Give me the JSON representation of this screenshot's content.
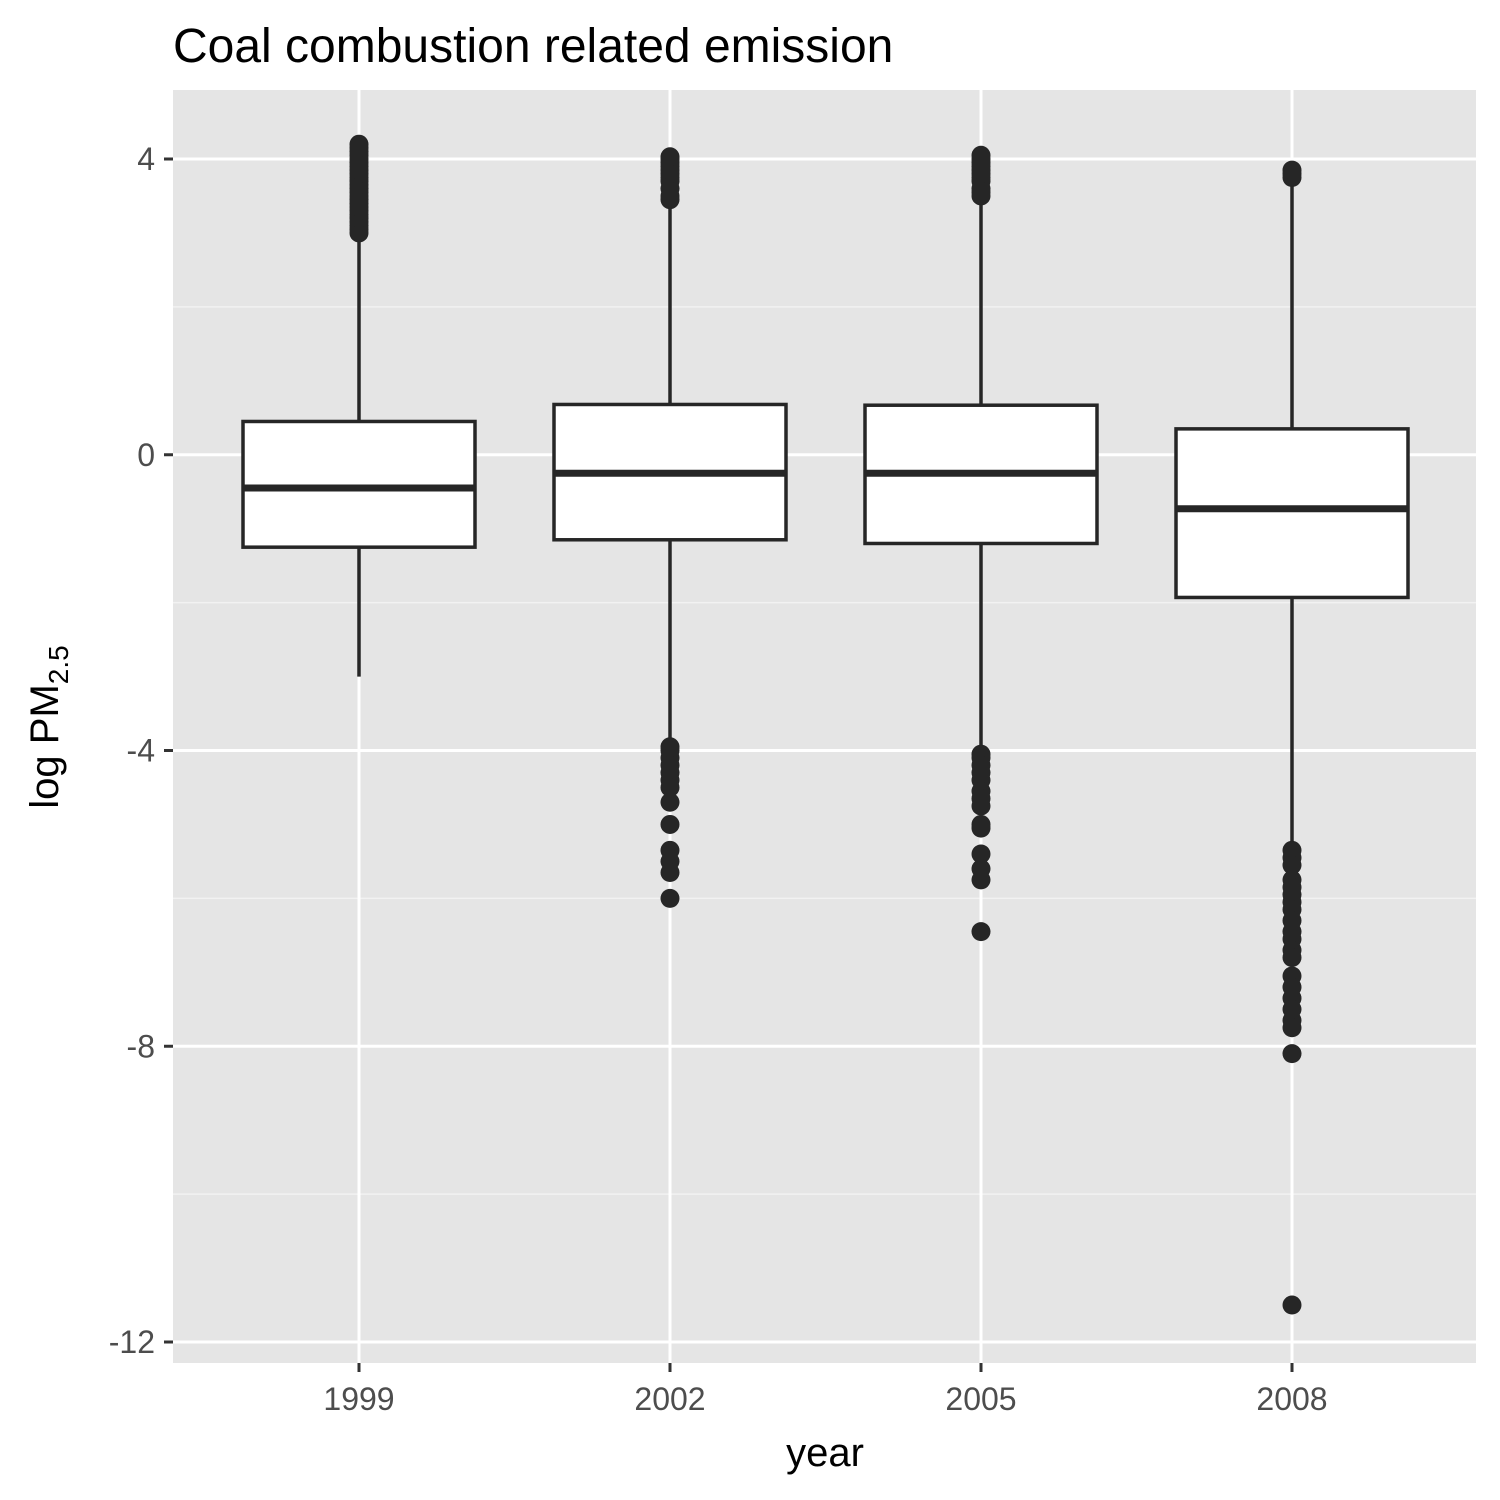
{
  "chart_data": {
    "type": "boxplot",
    "title": "Coal combustion related emission",
    "xlabel": "year",
    "ylabel_main": "log PM",
    "ylabel_sub": "2.5",
    "categories": [
      "1999",
      "2002",
      "2005",
      "2008"
    ],
    "ylim": [
      -12.3,
      5.0
    ],
    "yticks": [
      4,
      0,
      -4,
      -8,
      -12
    ],
    "ytick_labels": [
      "4",
      "0",
      "-4",
      "-8",
      "-12"
    ],
    "grid": true,
    "boxes": [
      {
        "category": "1999",
        "whisker_low": -3.0,
        "q1": -1.25,
        "median": -0.45,
        "q3": 0.45,
        "whisker_high": 3.0,
        "outliers": [
          3.0,
          3.05,
          3.1,
          3.15,
          3.2,
          3.25,
          3.3,
          3.35,
          3.4,
          3.45,
          3.5,
          3.55,
          3.6,
          3.65,
          3.7,
          3.75,
          3.8,
          3.85,
          3.9,
          3.95,
          4.0,
          4.05,
          4.1,
          4.15,
          4.2
        ]
      },
      {
        "category": "2002",
        "whisker_low": -3.95,
        "q1": -1.15,
        "median": -0.25,
        "q3": 0.68,
        "whisker_high": 3.45,
        "outliers": [
          3.45,
          3.5,
          3.6,
          3.7,
          3.75,
          3.8,
          3.85,
          3.9,
          3.95,
          4.0,
          4.03,
          -3.95,
          -4.0,
          -4.1,
          -4.2,
          -4.3,
          -4.4,
          -4.5,
          -4.7,
          -5.0,
          -5.35,
          -5.5,
          -5.65,
          -6.0
        ]
      },
      {
        "category": "2005",
        "whisker_low": -4.05,
        "q1": -1.2,
        "median": -0.25,
        "q3": 0.67,
        "whisker_high": 3.5,
        "outliers": [
          3.5,
          3.55,
          3.6,
          3.7,
          3.75,
          3.8,
          3.85,
          3.9,
          3.95,
          4.0,
          4.05,
          -4.05,
          -4.1,
          -4.2,
          -4.3,
          -4.4,
          -4.55,
          -4.65,
          -4.75,
          -5.0,
          -5.05,
          -5.4,
          -5.6,
          -5.75,
          -6.45
        ]
      },
      {
        "category": "2008",
        "whisker_low": -5.35,
        "q1": -1.93,
        "median": -0.73,
        "q3": 0.35,
        "whisker_high": 3.75,
        "outliers": [
          3.75,
          3.8,
          3.85,
          -5.35,
          -5.45,
          -5.55,
          -5.75,
          -5.85,
          -5.95,
          -6.05,
          -6.15,
          -6.3,
          -6.45,
          -6.55,
          -6.7,
          -6.8,
          -7.05,
          -7.2,
          -7.35,
          -7.5,
          -7.65,
          -7.75,
          -8.1,
          -11.5
        ]
      }
    ]
  }
}
